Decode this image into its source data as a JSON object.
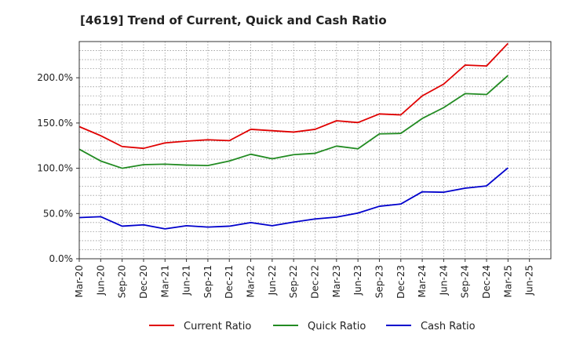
{
  "chart_data": {
    "type": "line",
    "title": "[4619]  Trend of Current, Quick and Cash Ratio",
    "xlabel": "",
    "ylabel": "",
    "ylim": [
      0,
      240
    ],
    "yticks": [
      0,
      50,
      100,
      150,
      200
    ],
    "ytick_labels": [
      "0.0%",
      "50.0%",
      "100.0%",
      "150.0%",
      "200.0%"
    ],
    "xtick_labels": [
      "Mar-20",
      "Jun-20",
      "Sep-20",
      "Dec-20",
      "Mar-21",
      "Jun-21",
      "Sep-21",
      "Dec-21",
      "Mar-22",
      "Jun-22",
      "Sep-22",
      "Dec-22",
      "Mar-23",
      "Jun-23",
      "Sep-23",
      "Dec-23",
      "Mar-24",
      "Jun-24",
      "Sep-24",
      "Dec-24",
      "Mar-25",
      "Jun-25"
    ],
    "categories": [
      "Mar-20",
      "Jun-20",
      "Sep-20",
      "Dec-20",
      "Mar-21",
      "Jun-21",
      "Sep-21",
      "Dec-21",
      "Mar-22",
      "Jun-22",
      "Sep-22",
      "Dec-22",
      "Mar-23",
      "Jun-23",
      "Sep-23",
      "Dec-23",
      "Mar-24",
      "Jun-24",
      "Sep-24",
      "Dec-24",
      "Mar-25"
    ],
    "grid": true,
    "legend_position": "bottom",
    "series": [
      {
        "name": "Current Ratio",
        "color": "#e00000",
        "values": [
          146,
          136,
          124,
          122,
          128,
          130,
          131.5,
          130.5,
          143,
          141.5,
          140,
          143,
          152.5,
          150.5,
          160,
          159,
          180,
          193,
          214,
          213,
          238
        ]
      },
      {
        "name": "Quick Ratio",
        "color": "#228b22",
        "values": [
          121,
          108,
          100,
          104,
          104.5,
          103.5,
          103,
          108,
          115.5,
          110.5,
          115,
          116.5,
          124.5,
          121.5,
          138,
          138.5,
          155,
          167,
          182.5,
          181.5,
          202.5
        ]
      },
      {
        "name": "Cash Ratio",
        "color": "#0000cc",
        "values": [
          45.5,
          46.5,
          36,
          37.5,
          33,
          36.5,
          35,
          36,
          40,
          36.5,
          40.5,
          44,
          46,
          50.5,
          58,
          60.5,
          74,
          73.5,
          78,
          80.5,
          100.5
        ]
      }
    ]
  }
}
